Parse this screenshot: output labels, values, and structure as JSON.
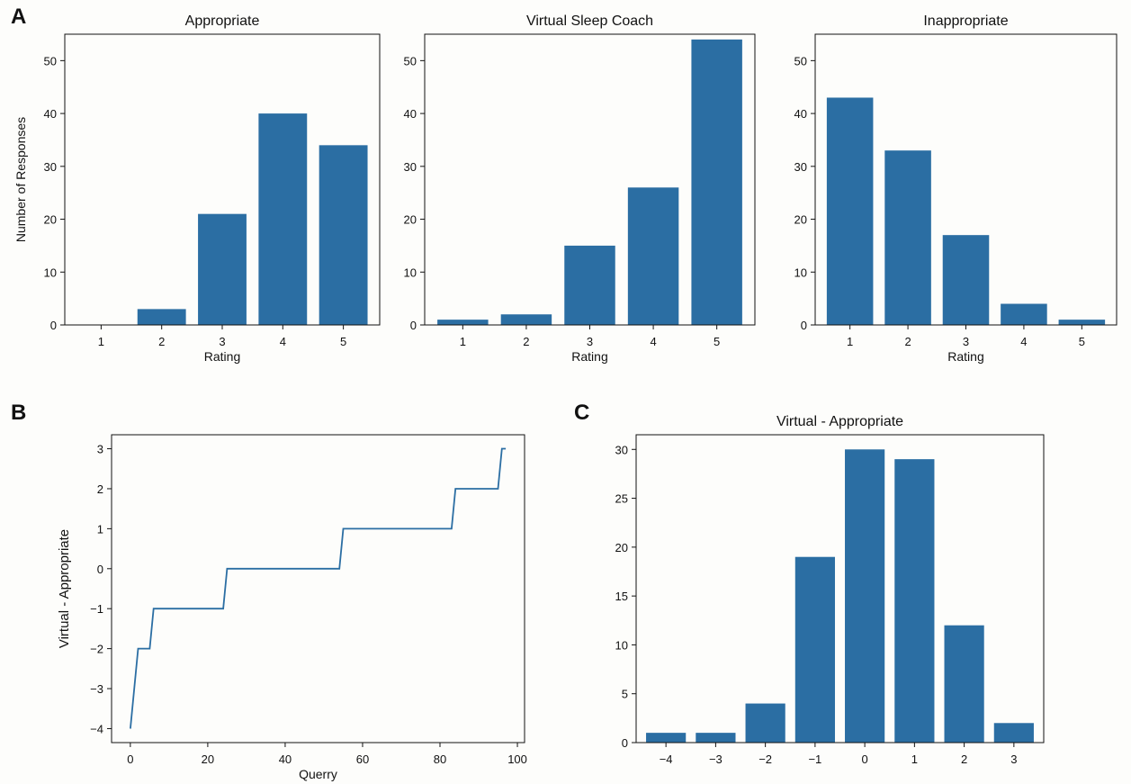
{
  "panel_labels": [
    "A",
    "B",
    "C"
  ],
  "chart_data": [
    {
      "id": "appropriate",
      "type": "bar",
      "title": "Appropriate",
      "xlabel": "Rating",
      "ylabel": "Number of Responses",
      "categories": [
        "1",
        "2",
        "3",
        "4",
        "5"
      ],
      "values": [
        0,
        3,
        21,
        40,
        34
      ],
      "ylim": [
        0,
        55
      ],
      "yticks": [
        "0",
        "10",
        "20",
        "30",
        "40",
        "50"
      ],
      "color": "#2b6ea3"
    },
    {
      "id": "virtual-sleep-coach",
      "type": "bar",
      "title": "Virtual Sleep Coach",
      "xlabel": "Rating",
      "ylabel": "",
      "categories": [
        "1",
        "2",
        "3",
        "4",
        "5"
      ],
      "values": [
        1,
        2,
        15,
        26,
        54
      ],
      "ylim": [
        0,
        55
      ],
      "yticks": [
        "0",
        "10",
        "20",
        "30",
        "40",
        "50"
      ],
      "color": "#2b6ea3"
    },
    {
      "id": "inappropriate",
      "type": "bar",
      "title": "Inappropriate",
      "xlabel": "Rating",
      "ylabel": "",
      "categories": [
        "1",
        "2",
        "3",
        "4",
        "5"
      ],
      "values": [
        43,
        33,
        17,
        4,
        1
      ],
      "ylim": [
        0,
        55
      ],
      "yticks": [
        "0",
        "10",
        "20",
        "30",
        "40",
        "50"
      ],
      "color": "#2b6ea3"
    },
    {
      "id": "difference-line",
      "type": "line",
      "title": "",
      "xlabel": "Querry",
      "ylabel": "Virtual - Appropriate",
      "points": [
        [
          0,
          -4
        ],
        [
          2,
          -2
        ],
        [
          5,
          -2
        ],
        [
          6,
          -1
        ],
        [
          24,
          -1
        ],
        [
          25,
          0
        ],
        [
          54,
          0
        ],
        [
          55,
          1
        ],
        [
          83,
          1
        ],
        [
          84,
          2
        ],
        [
          95,
          2
        ],
        [
          96,
          3
        ],
        [
          97,
          3
        ]
      ],
      "xlim": [
        -4.85,
        101.85
      ],
      "ylim": [
        -4.35,
        3.35
      ],
      "xticks": [
        "0",
        "20",
        "40",
        "60",
        "80",
        "100"
      ],
      "yticks": [
        "−4",
        "−3",
        "−2",
        "−1",
        "0",
        "1",
        "2",
        "3"
      ],
      "color": "#2b6ea3"
    },
    {
      "id": "difference-histogram",
      "type": "bar",
      "title": "Virtual - Appropriate",
      "xlabel": "",
      "ylabel": "",
      "categories": [
        "−4",
        "−3",
        "−2",
        "−1",
        "0",
        "1",
        "2",
        "3"
      ],
      "values": [
        1,
        1,
        4,
        19,
        30,
        29,
        12,
        2
      ],
      "ylim": [
        0,
        31.5
      ],
      "yticks": [
        "0",
        "5",
        "10",
        "15",
        "20",
        "25",
        "30"
      ],
      "color": "#2b6ea3"
    }
  ]
}
